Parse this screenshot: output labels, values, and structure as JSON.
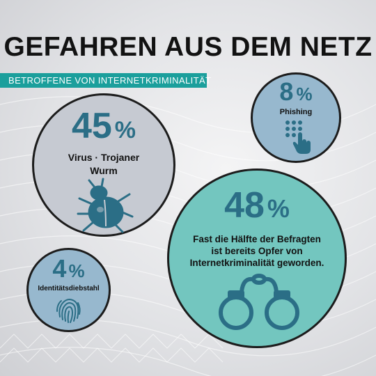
{
  "title": "GEFAHREN AUS DEM NETZ",
  "subtitle": "BETROFFENE VON INTERNETKRIMINALITÄT",
  "stats": {
    "virus": {
      "value": "45",
      "unit": "%",
      "label_line1": "Virus · Trojaner",
      "label_line2": "Wurm",
      "icon": "bug-icon"
    },
    "phishing": {
      "value": "8",
      "unit": "%",
      "label": "Phishing",
      "icon": "keypad-touch-icon"
    },
    "identity": {
      "value": "4",
      "unit": "%",
      "label": "Identitätsdiebstahl",
      "icon": "fingerprint-icon"
    },
    "overall": {
      "value": "48",
      "unit": "%",
      "label_line1": "Fast die Hälfte der Befragten",
      "label_line2": "ist bereits Opfer von",
      "label_line3": "Internetkriminalität geworden.",
      "icon": "handcuffs-icon"
    }
  },
  "colors": {
    "accent": "#1b9f9c",
    "number": "#2b6e86",
    "icon": "#2b6e86",
    "big_circle": "#73c6bf",
    "blue_circle": "#97b8ce",
    "grey_circle": "#c6cad2"
  }
}
